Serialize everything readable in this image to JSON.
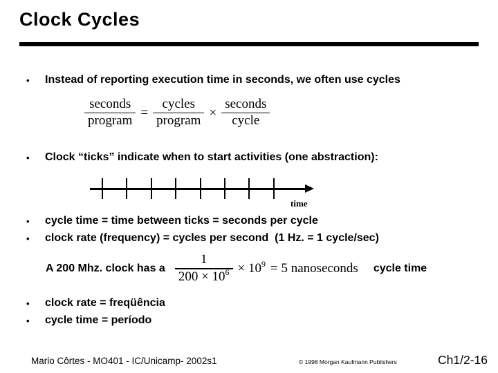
{
  "slide_title": "Clock Cycles",
  "bullet_char": "•",
  "bullets": [
    "Instead of reporting execution time in seconds, we often use cycles",
    "Clock “ticks” indicate when to start activities (one abstraction):",
    "cycle time = time between ticks = seconds per cycle",
    "clock rate (frequency) = cycles per second  (1 Hz. = 1 cycle/sec)",
    "clock rate = freqüência",
    "cycle time = período"
  ],
  "formula_ratio": {
    "num1": "seconds",
    "den1": "program",
    "eq": "=",
    "num2": "cycles",
    "den2": "program",
    "times": "×",
    "num3": "seconds",
    "den3": "cycle"
  },
  "clock_example": {
    "prefix": "A 200 Mhz. clock has a",
    "frac_num": "1",
    "frac_den_base": "200 × 10",
    "frac_den_sup": "6",
    "times_base": "× 10",
    "times_sup": "9",
    "equals_result": "= 5 nanoseconds",
    "suffix": "cycle time"
  },
  "timeline": {
    "tick_count": 8,
    "axis_label": "time"
  },
  "footer": {
    "author_course": "Mario Côrtes - MO401 - IC/Unicamp- 2002s1",
    "copyright": "© 1998 Morgan Kaufmann Publishers",
    "slide_number": "Ch1/2-16"
  }
}
